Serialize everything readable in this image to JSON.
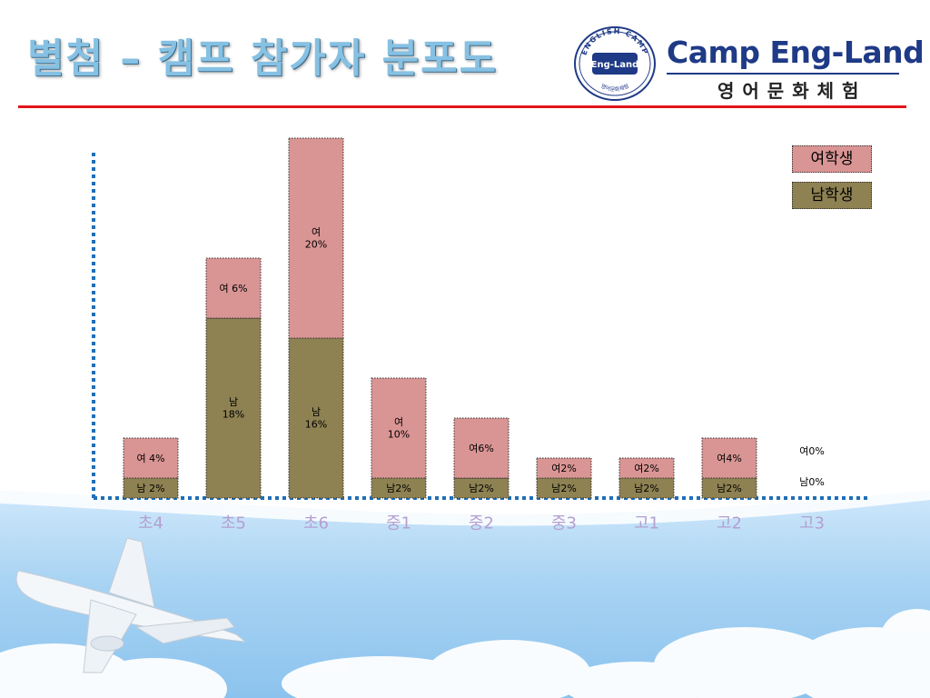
{
  "slide": {
    "title": "별첨 – 캠프 참가자 분포도"
  },
  "logo": {
    "seal_top": "ENGLISH CAMP",
    "seal_center": "Eng-Land",
    "seal_bottom": "영어문화체험",
    "brand_name": "Camp Eng-Land",
    "brand_sub": "영어문화체험"
  },
  "colors": {
    "female": "#d99594",
    "male": "#8e8152",
    "title": "#86c1e3",
    "rule": "#e3141b",
    "axis": "#1f6fb8",
    "tick_label": "#b49fd0"
  },
  "chart_data": {
    "type": "bar",
    "stacked": true,
    "categories": [
      "초4",
      "초5",
      "초6",
      "중1",
      "중2",
      "중3",
      "고1",
      "고2",
      "고3"
    ],
    "series": [
      {
        "name": "남학생",
        "values": [
          2,
          18,
          16,
          2,
          2,
          2,
          2,
          2,
          0
        ],
        "labels": [
          "남 2%",
          "남\n18%",
          "남\n16%",
          "남2%",
          "남2%",
          "남2%",
          "남2%",
          "남2%",
          "남0%"
        ]
      },
      {
        "name": "여학생",
        "values": [
          4,
          6,
          20,
          10,
          6,
          2,
          2,
          4,
          0
        ],
        "labels": [
          "여 4%",
          "여 6%",
          "여\n20%",
          "여\n10%",
          "여6%",
          "여2%",
          "여2%",
          "여4%",
          "여0%"
        ]
      }
    ],
    "legend": {
      "position": "top-right",
      "entries": [
        "여학생",
        "남학생"
      ]
    },
    "ylim": [
      0,
      36
    ]
  }
}
